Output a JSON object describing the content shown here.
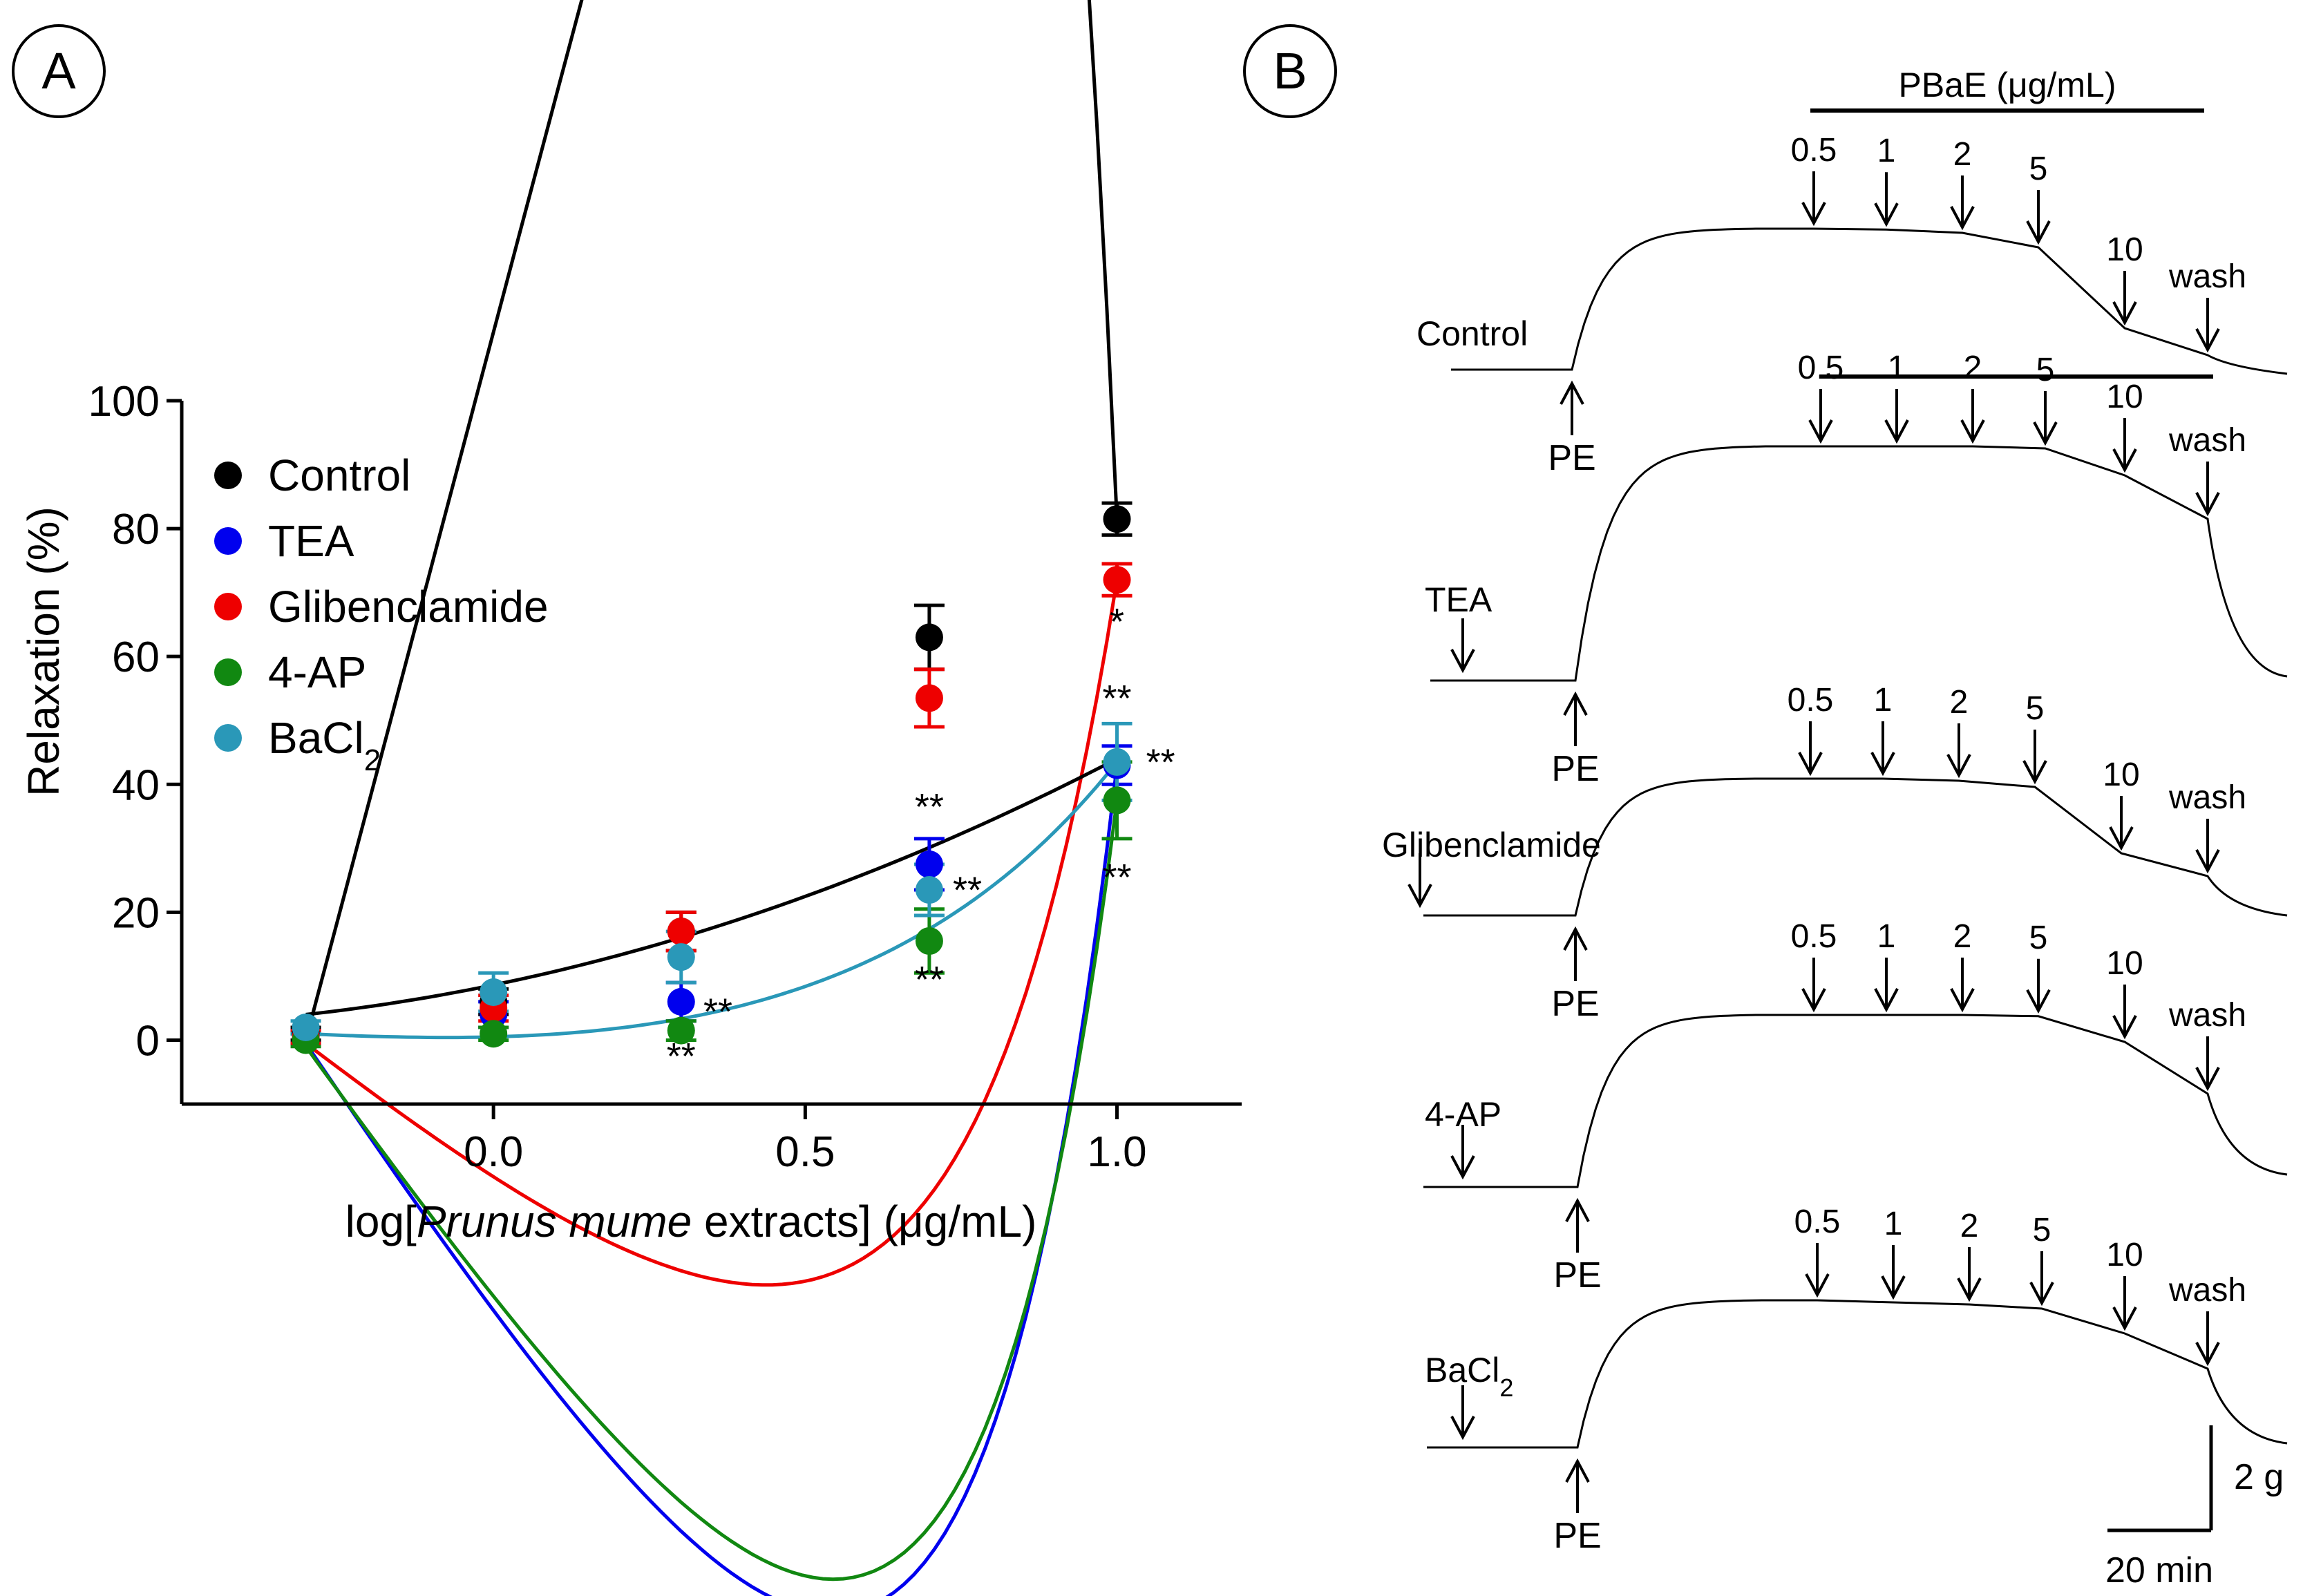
{
  "panels": {
    "a": {
      "label": "A"
    },
    "b": {
      "label": "B"
    }
  },
  "chart_data": [
    {
      "type": "scatter",
      "title": "",
      "xlabel_prefix": "log[",
      "xlabel_italic": "Prunus mume",
      "xlabel_suffix": " extracts] (μg/mL)",
      "ylabel": "Relaxation (%)",
      "xlim": [
        -0.5,
        1.2
      ],
      "ylim": [
        -10,
        100
      ],
      "xticks": [
        0.0,
        0.5,
        1.0
      ],
      "xtick_labels": [
        "0.0",
        "0.5",
        "1.0"
      ],
      "yticks": [
        0,
        20,
        40,
        60,
        80,
        100
      ],
      "ytick_labels": [
        "0",
        "20",
        "40",
        "60",
        "80",
        "100"
      ],
      "x": [
        -0.301,
        0.0,
        0.301,
        0.699,
        1.0
      ],
      "legend_position": "top-left",
      "series": [
        {
          "name": "Control",
          "color": "#000000",
          "values": [
            1,
            6,
            17,
            63,
            81.5
          ],
          "errors": [
            1,
            2,
            3,
            5,
            2.5
          ],
          "fit": [
            -2.04,
            -0.175,
            0.6,
            0.04
          ]
        },
        {
          "name": "TEA",
          "color": "#0000ee",
          "values": [
            0.5,
            4,
            6,
            27.5,
            43
          ],
          "errors": [
            1,
            2,
            3,
            4,
            3
          ],
          "fit": [
            -0.7,
            0.6,
            0.45,
            0.032
          ]
        },
        {
          "name": "Glibenclamide",
          "color": "#ee0000",
          "values": [
            0.5,
            5,
            17,
            53.5,
            72
          ],
          "errors": [
            1,
            2,
            3,
            4.5,
            2.5
          ],
          "fit": [
            -1.4,
            0.4,
            0.45,
            0.04
          ]
        },
        {
          "name": "4-AP",
          "color": "#118811",
          "values": [
            0,
            1,
            1.5,
            15.5,
            37.5
          ],
          "errors": [
            1,
            1,
            1.5,
            5,
            6
          ],
          "fit": [
            -1.45,
            0.55,
            0.45,
            0.032
          ]
        },
        {
          "name": "BaCl",
          "name_sub": "2",
          "color": "#2a98b8",
          "values": [
            2,
            7.5,
            13,
            23.5,
            43.5
          ],
          "errors": [
            1,
            3,
            4,
            4,
            6
          ],
          "fit": [
            -3.0,
            0.55,
            0.3,
            0.03
          ]
        }
      ],
      "significance": [
        {
          "text": "**",
          "x": 0.301,
          "y": -4.5
        },
        {
          "text": "**",
          "x": 0.36,
          "y": 2.5
        },
        {
          "text": "**",
          "x": 0.699,
          "y": 34.5
        },
        {
          "text": "**",
          "x": 0.76,
          "y": 21.5
        },
        {
          "text": "**",
          "x": 0.699,
          "y": 7.5
        },
        {
          "text": "*",
          "x": 1.0,
          "y": 63.5
        },
        {
          "text": "**",
          "x": 1.0,
          "y": 51.5
        },
        {
          "text": "**",
          "x": 1.07,
          "y": 41.5
        },
        {
          "text": "**",
          "x": 1.0,
          "y": 23.5
        }
      ],
      "extra_line": {
        "color": "#000000",
        "p1": [
          -0.301,
          4
        ],
        "p2": [
          1.0,
          44
        ]
      }
    },
    {
      "type": "line",
      "title": "PBaE (μg/mL)",
      "traces": [
        {
          "label": "Control",
          "stim": "PE",
          "doses": [
            "0.5",
            "1",
            "2",
            "5",
            "10",
            "wash"
          ],
          "baseline_g": 0,
          "plateau_g": 3.4,
          "after_dose_g": [
            3.4,
            3.38,
            3.3,
            2.95,
            1.0,
            0.35
          ],
          "final_g": -0.1
        },
        {
          "label": "TEA",
          "stim": "PE",
          "doses": [
            "0.5",
            "1",
            "2",
            "5",
            "10",
            "wash"
          ],
          "baseline_g": 0,
          "plateau_g": 5.65,
          "after_dose_g": [
            5.65,
            5.65,
            5.65,
            5.6,
            4.95,
            3.9
          ],
          "final_g": 0.1
        },
        {
          "label": "Glibenclamide",
          "stim": "PE",
          "doses": [
            "0.5",
            "1",
            "2",
            "5",
            "10",
            "wash"
          ],
          "baseline_g": 0,
          "plateau_g": 3.3,
          "after_dose_g": [
            3.3,
            3.3,
            3.25,
            3.1,
            1.5,
            0.95
          ],
          "final_g": 0
        },
        {
          "label": "4-AP",
          "stim": "PE",
          "doses": [
            "0.5",
            "1",
            "2",
            "5",
            "10",
            "wash"
          ],
          "baseline_g": 0,
          "plateau_g": 4.15,
          "after_dose_g": [
            4.15,
            4.15,
            4.15,
            4.12,
            3.5,
            2.25
          ],
          "final_g": 0.3
        },
        {
          "label": "BaCl",
          "label_sub": "2",
          "stim": "PE",
          "doses": [
            "0.5",
            "1",
            "2",
            "5",
            "10",
            "wash"
          ],
          "baseline_g": 0,
          "plateau_g": 3.55,
          "after_dose_g": [
            3.55,
            3.5,
            3.45,
            3.35,
            2.75,
            1.9
          ],
          "final_g": 0.1
        }
      ],
      "scale_bar": {
        "y_label": "2 g",
        "x_label": "20 min"
      }
    }
  ]
}
